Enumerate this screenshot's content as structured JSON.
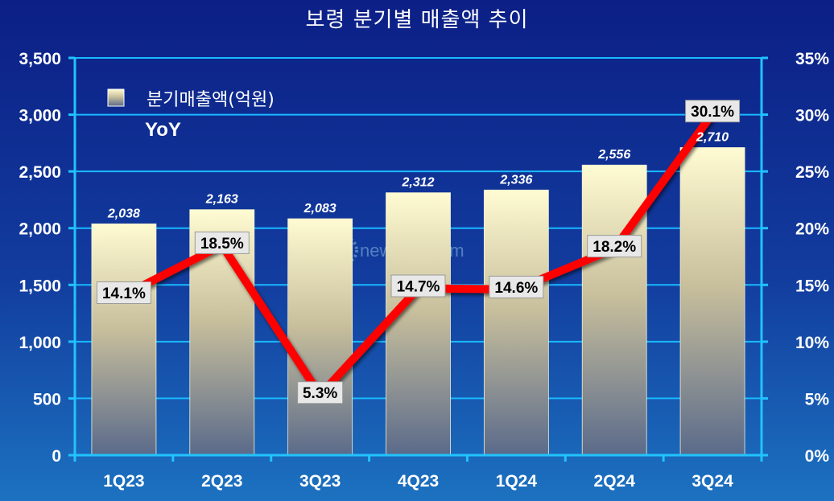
{
  "title": "보령 분기별 매출액 추이",
  "legend": {
    "bar_label": "분기매출액(억원)",
    "line_label": "YoY"
  },
  "watermark": "newsmp.com",
  "colors": {
    "bar_top": "#fffbd2",
    "bar_bottom": "#5a6a8a",
    "line": "#ff0000",
    "axis": "#21c3ff",
    "grid": "#19b9ff",
    "label_bg": "#e8e8e8"
  },
  "chart_data": {
    "type": "bar",
    "categories": [
      "1Q23",
      "2Q23",
      "3Q23",
      "4Q23",
      "1Q24",
      "2Q24",
      "3Q24"
    ],
    "series": [
      {
        "name": "분기매출액(억원)",
        "type": "bar",
        "axis": "left",
        "values": [
          2038,
          2163,
          2083,
          2312,
          2336,
          2556,
          2710
        ],
        "labels": [
          "2,038",
          "2,163",
          "2,083",
          "2,312",
          "2,336",
          "2,556",
          "2,710"
        ]
      },
      {
        "name": "YoY",
        "type": "line",
        "axis": "right",
        "values": [
          14.1,
          18.5,
          5.3,
          14.7,
          14.6,
          18.2,
          30.1
        ],
        "labels": [
          "14.1%",
          "18.5%",
          "5.3%",
          "14.7%",
          "14.6%",
          "18.2%",
          "30.1%"
        ]
      }
    ],
    "y_left": {
      "ylim": [
        0,
        3500
      ],
      "ticks": [
        0,
        500,
        1000,
        1500,
        2000,
        2500,
        3000,
        3500
      ],
      "tick_labels": [
        "0",
        "500",
        "1,000",
        "1,500",
        "2,000",
        "2,500",
        "3,000",
        "3,500"
      ]
    },
    "y_right": {
      "ylim": [
        0,
        35
      ],
      "ticks": [
        0,
        5,
        10,
        15,
        20,
        25,
        30,
        35
      ],
      "tick_labels": [
        "0%",
        "5%",
        "10%",
        "15%",
        "20%",
        "25%",
        "30%",
        "35%"
      ]
    },
    "grid": true,
    "legend_position": "top-left"
  }
}
